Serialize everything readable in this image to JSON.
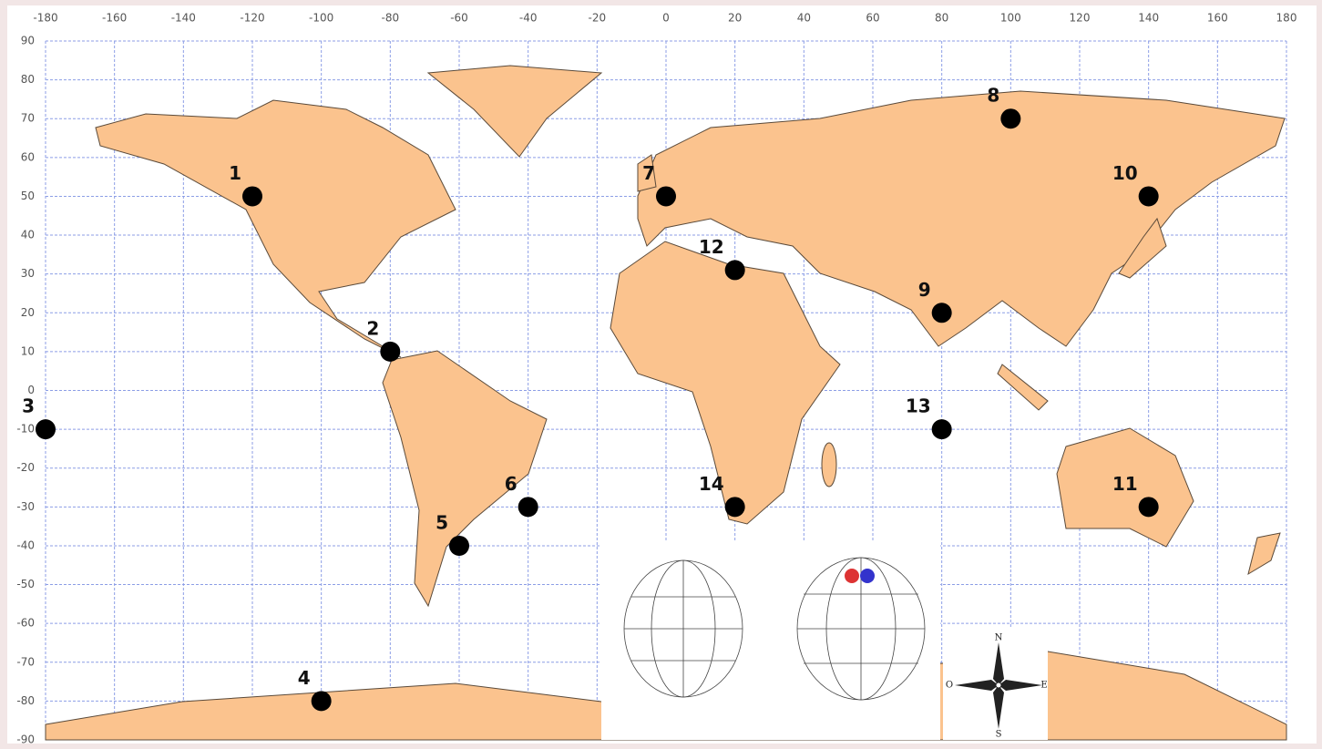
{
  "chart_data": {
    "type": "scatter",
    "xlim": [
      -180,
      180
    ],
    "ylim": [
      -90,
      90
    ],
    "xticks": [
      -180,
      -160,
      -140,
      -120,
      -100,
      -80,
      -60,
      -40,
      -20,
      0,
      20,
      40,
      60,
      80,
      100,
      120,
      140,
      160,
      180
    ],
    "yticks": [
      90,
      80,
      70,
      60,
      50,
      40,
      30,
      20,
      10,
      0,
      -10,
      -20,
      -30,
      -40,
      -50,
      -60,
      -70,
      -80,
      -90
    ],
    "grid": true,
    "color": "#000000",
    "point_labels": [
      "1",
      "2",
      "3",
      "4",
      "5",
      "6",
      "7",
      "8",
      "9",
      "10",
      "11",
      "12",
      "13",
      "14"
    ],
    "x": [
      -120,
      -80,
      -180,
      -100,
      -60,
      -40,
      0,
      100,
      80,
      140,
      140,
      20,
      80,
      20
    ],
    "values": [
      50,
      10,
      -10,
      -80,
      -40,
      -30,
      50,
      70,
      20,
      50,
      -30,
      31,
      -10,
      -30
    ]
  },
  "compass": {
    "n": "N",
    "s": "S",
    "e": "E",
    "o": "O"
  }
}
